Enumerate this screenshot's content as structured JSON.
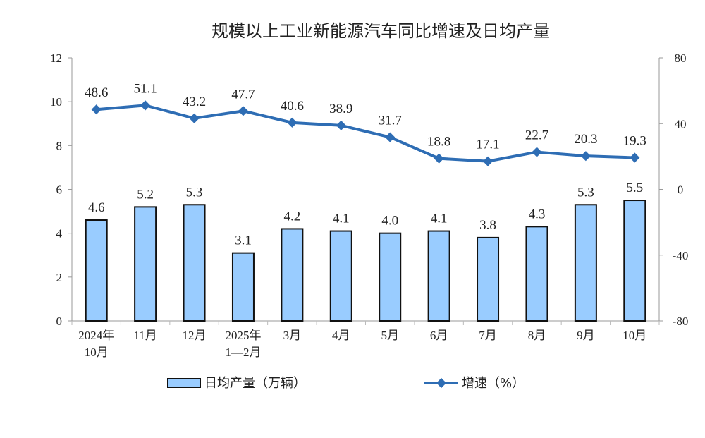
{
  "chart_data": {
    "type": "bar+line",
    "title": "规模以上工业新能源汽车同比增速及日均产量",
    "categories": [
      [
        "2024年",
        "10月"
      ],
      [
        "11月"
      ],
      [
        "12月"
      ],
      [
        "2025年",
        "1—2月"
      ],
      [
        "3月"
      ],
      [
        "4月"
      ],
      [
        "5月"
      ],
      [
        "6月"
      ],
      [
        "7月"
      ],
      [
        "8月"
      ],
      [
        "9月"
      ],
      [
        "10月"
      ]
    ],
    "series": [
      {
        "name": "日均产量（万辆）",
        "type": "bar",
        "axis": "left",
        "color": "#99CCFF",
        "values": [
          4.6,
          5.2,
          5.3,
          3.1,
          4.2,
          4.1,
          4.0,
          4.1,
          3.8,
          4.3,
          5.3,
          5.5
        ]
      },
      {
        "name": "增速（%）",
        "type": "line",
        "axis": "right",
        "color": "#2E6DB4",
        "values": [
          48.6,
          51.1,
          43.2,
          47.7,
          40.6,
          38.9,
          31.7,
          18.8,
          17.1,
          22.7,
          20.3,
          19.3
        ]
      }
    ],
    "left_axis": {
      "ylim": [
        0,
        12
      ],
      "ticks": [
        0,
        2,
        4,
        6,
        8,
        10,
        12
      ]
    },
    "right_axis": {
      "ylim": [
        -80,
        80
      ],
      "ticks": [
        -80,
        -40,
        0,
        40,
        80
      ]
    },
    "grid": false,
    "legend": "bottom"
  }
}
